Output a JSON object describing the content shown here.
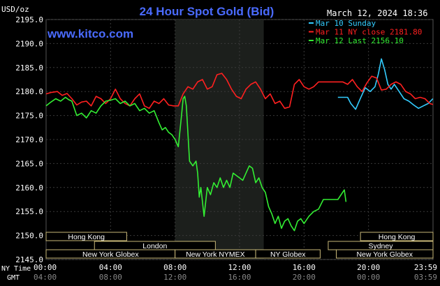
{
  "chart_data": {
    "type": "line",
    "title": "24 Hour Spot Gold (Bid)",
    "ylabel": "USD/oz",
    "source_label": "www.kitco.com",
    "timestamp": "March 12, 2024 18:36",
    "ylim": [
      2145,
      2195
    ],
    "y_ticks": [
      "2195.0",
      "2190.0",
      "2185.0",
      "2180.0",
      "2175.0",
      "2170.0",
      "2165.0",
      "2160.0",
      "2155.0",
      "2150.0",
      "2145.0"
    ],
    "x_label_primary": "NY Time",
    "x_label_secondary": "GMT",
    "x_ticks_ny": [
      "00:00",
      "04:00",
      "08:00",
      "12:00",
      "16:00",
      "20:00",
      "23:59"
    ],
    "x_ticks_gmt": [
      "04:00",
      "08:00",
      "12:00",
      "16:00",
      "20:00",
      "00:00",
      "03:59"
    ],
    "shaded_session_hours": [
      8.0,
      13.5
    ],
    "legend": [
      {
        "label": "Mar 10 Sunday",
        "color": "#33ccff"
      },
      {
        "label": "Mar 11 NY close 2181.80",
        "color": "#ff2020"
      },
      {
        "label": "Mar 12 Last 2156.10",
        "color": "#33ee33"
      }
    ],
    "sessions": [
      {
        "label": "Hong Kong",
        "start": 0.0,
        "end": 5.0,
        "row": 0
      },
      {
        "label": "London",
        "start": 3.0,
        "end": 10.5,
        "row": 1
      },
      {
        "label": "New York Globex",
        "start": 0.0,
        "end": 8.0,
        "row": 2
      },
      {
        "label": "New York NYMEX",
        "start": 8.0,
        "end": 13.0,
        "row": 2
      },
      {
        "label": "NY Globex",
        "start": 13.0,
        "end": 17.0,
        "row": 2
      },
      {
        "label": "Hong Kong",
        "start": 19.5,
        "end": 24.0,
        "row": 0
      },
      {
        "label": "Sydney",
        "start": 17.5,
        "end": 24.0,
        "row": 1
      },
      {
        "label": "New York Globex",
        "start": 18.0,
        "end": 24.0,
        "row": 2
      }
    ],
    "series": [
      {
        "name": "Mar 10 Sunday",
        "color": "#33ccff",
        "x": [
          18.1,
          18.5,
          18.7,
          18.9,
          19.2,
          19.5,
          19.8,
          20.1,
          20.4,
          20.6,
          20.8,
          21.0,
          21.2,
          21.4,
          21.6,
          21.9,
          22.2,
          22.5,
          22.8,
          23.1,
          23.4,
          23.7,
          23.99
        ],
        "y": [
          2178.8,
          2178.8,
          2178.8,
          2177.5,
          2176.3,
          2178.6,
          2180.8,
          2180.0,
          2181.0,
          2183.5,
          2186.8,
          2184.5,
          2181.5,
          2180.5,
          2181.5,
          2180.0,
          2178.5,
          2178.0,
          2177.2,
          2176.5,
          2177.0,
          2177.5,
          2178.5
        ]
      },
      {
        "name": "Mar 11 NY close 2181.80",
        "color": "#ff2020",
        "x": [
          0.0,
          0.3,
          0.7,
          1.0,
          1.3,
          1.6,
          1.9,
          2.2,
          2.5,
          2.8,
          3.1,
          3.4,
          3.7,
          4.0,
          4.3,
          4.6,
          4.9,
          5.2,
          5.5,
          5.8,
          6.1,
          6.4,
          6.7,
          7.0,
          7.3,
          7.6,
          7.9,
          8.2,
          8.5,
          8.8,
          9.1,
          9.4,
          9.7,
          10.0,
          10.3,
          10.6,
          10.9,
          11.2,
          11.5,
          11.8,
          12.1,
          12.4,
          12.7,
          13.0,
          13.3,
          13.6,
          13.9,
          14.2,
          14.5,
          14.8,
          15.1,
          15.4,
          15.7,
          16.0,
          16.3,
          16.6,
          16.9,
          17.2,
          17.5,
          17.8,
          18.1,
          18.4,
          18.7,
          19.0,
          19.3,
          19.6,
          19.9,
          20.2,
          20.5,
          20.8,
          21.1,
          21.4,
          21.7,
          22.0,
          22.3,
          22.6,
          22.9,
          23.2,
          23.5,
          23.8,
          23.99
        ],
        "y": [
          2179.5,
          2179.8,
          2180.0,
          2179.2,
          2179.6,
          2178.5,
          2177.2,
          2177.8,
          2178.0,
          2177.0,
          2179.0,
          2178.5,
          2177.5,
          2178.5,
          2180.5,
          2178.5,
          2177.5,
          2177.0,
          2178.5,
          2179.5,
          2177.0,
          2176.5,
          2178.0,
          2177.5,
          2178.5,
          2177.2,
          2177.0,
          2177.0,
          2179.5,
          2181.0,
          2180.5,
          2182.0,
          2182.5,
          2180.5,
          2181.0,
          2183.5,
          2183.8,
          2182.5,
          2180.5,
          2179.0,
          2178.5,
          2180.5,
          2181.5,
          2182.0,
          2180.5,
          2178.5,
          2179.5,
          2177.5,
          2178.0,
          2176.5,
          2176.8,
          2181.5,
          2182.5,
          2181.0,
          2180.5,
          2181.0,
          2182.0,
          2182.0,
          2182.0,
          2182.0,
          2182.0,
          2182.0,
          2181.5,
          2182.5,
          2181.0,
          2180.0,
          2181.8,
          2183.2,
          2182.8,
          2180.3,
          2180.5,
          2181.5,
          2182.0,
          2181.5,
          2180.0,
          2179.5,
          2178.5,
          2178.8,
          2178.5,
          2177.5,
          2177.3
        ]
      },
      {
        "name": "Mar 12 Last 2156.10",
        "color": "#33ee33",
        "x": [
          0.0,
          0.3,
          0.6,
          0.9,
          1.2,
          1.4,
          1.6,
          1.9,
          2.2,
          2.5,
          2.8,
          3.1,
          3.4,
          3.7,
          4.0,
          4.3,
          4.6,
          4.9,
          5.2,
          5.5,
          5.8,
          6.1,
          6.4,
          6.7,
          7.0,
          7.2,
          7.4,
          7.6,
          7.8,
          8.0,
          8.2,
          8.4,
          8.5,
          8.6,
          8.7,
          8.9,
          9.1,
          9.3,
          9.4,
          9.5,
          9.6,
          9.8,
          10.0,
          10.2,
          10.4,
          10.6,
          10.8,
          11.0,
          11.2,
          11.4,
          11.6,
          11.8,
          12.0,
          12.2,
          12.4,
          12.6,
          12.8,
          13.0,
          13.2,
          13.4,
          13.6,
          13.8,
          14.0,
          14.2,
          14.4,
          14.6,
          14.8,
          15.0,
          15.2,
          15.4,
          15.6,
          15.8,
          16.0,
          16.3,
          16.6,
          16.9,
          17.2,
          17.5,
          17.8,
          18.1,
          18.3,
          18.5,
          18.6
        ],
        "y": [
          2177.0,
          2177.8,
          2178.5,
          2178.0,
          2178.8,
          2178.3,
          2178.0,
          2175.0,
          2175.5,
          2174.5,
          2176.0,
          2175.5,
          2177.0,
          2178.0,
          2178.2,
          2178.5,
          2177.5,
          2178.0,
          2177.0,
          2177.5,
          2176.0,
          2176.5,
          2175.5,
          2176.0,
          2173.5,
          2172.0,
          2172.5,
          2171.5,
          2171.0,
          2170.0,
          2168.5,
          2175.0,
          2178.5,
          2179.0,
          2177.0,
          2165.5,
          2164.5,
          2165.5,
          2163.0,
          2158.0,
          2160.0,
          2154.0,
          2160.0,
          2158.5,
          2161.0,
          2160.0,
          2162.0,
          2160.0,
          2161.5,
          2160.0,
          2163.0,
          2162.5,
          2162.0,
          2161.5,
          2163.0,
          2164.5,
          2164.0,
          2161.0,
          2162.0,
          2160.0,
          2159.0,
          2156.0,
          2154.5,
          2152.5,
          2154.0,
          2151.5,
          2153.0,
          2153.5,
          2152.0,
          2151.0,
          2153.0,
          2153.5,
          2152.5,
          2154.0,
          2155.0,
          2155.5,
          2157.5,
          2157.5,
          2157.5,
          2157.5,
          2158.5,
          2159.5,
          2157.0
        ]
      }
    ]
  }
}
